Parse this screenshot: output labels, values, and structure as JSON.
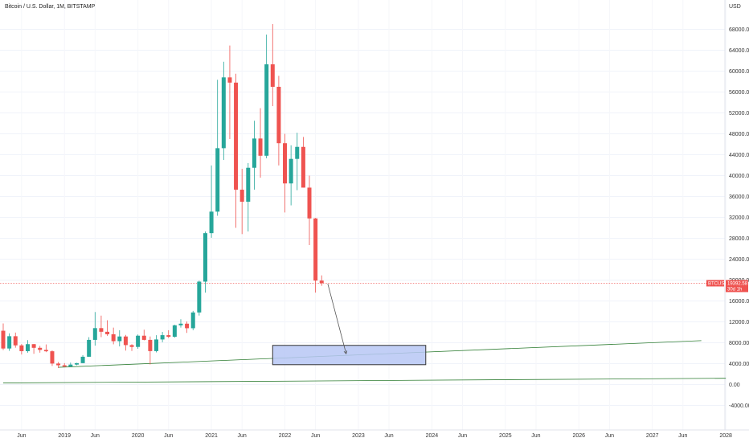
{
  "header": {
    "title": "Bitcoin / U.S. Dollar, 1M, BITSTAMP"
  },
  "price_axis": {
    "unit": "USD"
  },
  "price_badge": {
    "symbol": "BTCUSD",
    "price": "19392.58",
    "countdown": "30d 1h"
  },
  "colors": {
    "up": "#26a69a",
    "down": "#ef5350",
    "trendline": "#2e7d32",
    "box_fill": "#b7c7f5",
    "box_border": "#333333",
    "price_line": "#ef5350",
    "axis_text": "#333333"
  },
  "chart_data": {
    "type": "candlestick",
    "title": "Bitcoin / U.S. Dollar, 1M, BITSTAMP",
    "ylabel": "USD",
    "ylim": [
      -5000,
      70000
    ],
    "y_ticks": [
      -4000,
      0,
      4000,
      8000,
      12000,
      16000,
      20000,
      24000,
      28000,
      32000,
      36000,
      40000,
      44000,
      48000,
      52000,
      56000,
      60000,
      64000,
      68000
    ],
    "y_tick_labels": [
      "-4000.00",
      "0.00",
      "4000.00",
      "8000.00",
      "12000.00",
      "16000.00",
      "20000.00",
      "24000.00",
      "28000.00",
      "32000.00",
      "36000.00",
      "40000.00",
      "44000.00",
      "48000.00",
      "52000.00",
      "56000.00",
      "60000.00",
      "64000.00",
      "68000.00"
    ],
    "x_start": "2018-03",
    "x_ticks": [
      {
        "date": "2018-06",
        "label": "Jun"
      },
      {
        "date": "2019-01",
        "label": "2019"
      },
      {
        "date": "2019-06",
        "label": "Jun"
      },
      {
        "date": "2020-01",
        "label": "2020"
      },
      {
        "date": "2020-06",
        "label": "Jun"
      },
      {
        "date": "2021-01",
        "label": "2021"
      },
      {
        "date": "2021-06",
        "label": "Jun"
      },
      {
        "date": "2022-01",
        "label": "2022"
      },
      {
        "date": "2022-06",
        "label": "Jun"
      },
      {
        "date": "2023-01",
        "label": "2023"
      },
      {
        "date": "2023-06",
        "label": "Jun"
      },
      {
        "date": "2024-01",
        "label": "2024"
      },
      {
        "date": "2024-06",
        "label": "Jun"
      },
      {
        "date": "2025-01",
        "label": "2025"
      },
      {
        "date": "2025-06",
        "label": "Jun"
      },
      {
        "date": "2026-01",
        "label": "2026"
      },
      {
        "date": "2026-06",
        "label": "Jun"
      },
      {
        "date": "2027-01",
        "label": "2027"
      },
      {
        "date": "2027-06",
        "label": "Jun"
      },
      {
        "date": "2028-01",
        "label": "2028"
      }
    ],
    "candles": [
      {
        "date": "2018-03",
        "o": 10300,
        "h": 11700,
        "l": 6600,
        "c": 6900
      },
      {
        "date": "2018-04",
        "o": 6900,
        "h": 9800,
        "l": 6450,
        "c": 9250
      },
      {
        "date": "2018-05",
        "o": 9250,
        "h": 9950,
        "l": 7050,
        "c": 7500
      },
      {
        "date": "2018-06",
        "o": 7500,
        "h": 7750,
        "l": 5750,
        "c": 6390
      },
      {
        "date": "2018-07",
        "o": 6390,
        "h": 8500,
        "l": 6100,
        "c": 7730
      },
      {
        "date": "2018-08",
        "o": 7730,
        "h": 7760,
        "l": 5880,
        "c": 7030
      },
      {
        "date": "2018-09",
        "o": 7030,
        "h": 7400,
        "l": 6100,
        "c": 6630
      },
      {
        "date": "2018-10",
        "o": 6630,
        "h": 7680,
        "l": 6200,
        "c": 6370
      },
      {
        "date": "2018-11",
        "o": 6370,
        "h": 6560,
        "l": 3550,
        "c": 4020
      },
      {
        "date": "2018-12",
        "o": 4020,
        "h": 4300,
        "l": 3150,
        "c": 3690
      },
      {
        "date": "2019-01",
        "o": 3690,
        "h": 4100,
        "l": 3350,
        "c": 3440
      },
      {
        "date": "2019-02",
        "o": 3440,
        "h": 4200,
        "l": 3400,
        "c": 3820
      },
      {
        "date": "2019-03",
        "o": 3820,
        "h": 4150,
        "l": 3700,
        "c": 4100
      },
      {
        "date": "2019-04",
        "o": 4100,
        "h": 5640,
        "l": 4070,
        "c": 5320
      },
      {
        "date": "2019-05",
        "o": 5320,
        "h": 9070,
        "l": 5290,
        "c": 8550
      },
      {
        "date": "2019-06",
        "o": 8550,
        "h": 13880,
        "l": 7450,
        "c": 10800
      },
      {
        "date": "2019-07",
        "o": 10800,
        "h": 13200,
        "l": 9070,
        "c": 10100
      },
      {
        "date": "2019-08",
        "o": 10100,
        "h": 12300,
        "l": 9320,
        "c": 9630
      },
      {
        "date": "2019-09",
        "o": 9630,
        "h": 10900,
        "l": 7700,
        "c": 8300
      },
      {
        "date": "2019-10",
        "o": 8300,
        "h": 10400,
        "l": 7300,
        "c": 9200
      },
      {
        "date": "2019-11",
        "o": 9200,
        "h": 9500,
        "l": 6500,
        "c": 7550
      },
      {
        "date": "2019-12",
        "o": 7550,
        "h": 7740,
        "l": 6430,
        "c": 7200
      },
      {
        "date": "2020-01",
        "o": 7200,
        "h": 9580,
        "l": 6850,
        "c": 9350
      },
      {
        "date": "2020-02",
        "o": 9350,
        "h": 10500,
        "l": 8450,
        "c": 8550
      },
      {
        "date": "2020-03",
        "o": 8550,
        "h": 9200,
        "l": 3850,
        "c": 6400
      },
      {
        "date": "2020-04",
        "o": 6400,
        "h": 9450,
        "l": 6150,
        "c": 8630
      },
      {
        "date": "2020-05",
        "o": 8630,
        "h": 10070,
        "l": 8100,
        "c": 9450
      },
      {
        "date": "2020-06",
        "o": 9450,
        "h": 10400,
        "l": 8900,
        "c": 9140
      },
      {
        "date": "2020-07",
        "o": 9140,
        "h": 11450,
        "l": 8980,
        "c": 11340
      },
      {
        "date": "2020-08",
        "o": 11340,
        "h": 12500,
        "l": 10900,
        "c": 11650
      },
      {
        "date": "2020-09",
        "o": 11650,
        "h": 12080,
        "l": 9880,
        "c": 10780
      },
      {
        "date": "2020-10",
        "o": 10780,
        "h": 14100,
        "l": 10400,
        "c": 13800
      },
      {
        "date": "2020-11",
        "o": 13800,
        "h": 19900,
        "l": 13200,
        "c": 19700
      },
      {
        "date": "2020-12",
        "o": 19700,
        "h": 29300,
        "l": 17600,
        "c": 28980
      },
      {
        "date": "2021-01",
        "o": 28980,
        "h": 41950,
        "l": 28100,
        "c": 33100
      },
      {
        "date": "2021-02",
        "o": 33100,
        "h": 58350,
        "l": 32300,
        "c": 45250
      },
      {
        "date": "2021-03",
        "o": 45250,
        "h": 61800,
        "l": 43000,
        "c": 58800
      },
      {
        "date": "2021-04",
        "o": 58800,
        "h": 64900,
        "l": 47000,
        "c": 57800
      },
      {
        "date": "2021-05",
        "o": 57800,
        "h": 59500,
        "l": 30000,
        "c": 37300
      },
      {
        "date": "2021-06",
        "o": 37300,
        "h": 41300,
        "l": 28800,
        "c": 35000
      },
      {
        "date": "2021-07",
        "o": 35000,
        "h": 42400,
        "l": 29300,
        "c": 41500
      },
      {
        "date": "2021-08",
        "o": 41500,
        "h": 50500,
        "l": 37300,
        "c": 47100
      },
      {
        "date": "2021-09",
        "o": 47100,
        "h": 52900,
        "l": 39600,
        "c": 43800
      },
      {
        "date": "2021-10",
        "o": 43800,
        "h": 67000,
        "l": 43300,
        "c": 61300
      },
      {
        "date": "2021-11",
        "o": 61300,
        "h": 69000,
        "l": 53300,
        "c": 57000
      },
      {
        "date": "2021-12",
        "o": 57000,
        "h": 59100,
        "l": 41950,
        "c": 46200
      },
      {
        "date": "2022-01",
        "o": 46200,
        "h": 48000,
        "l": 32950,
        "c": 38500
      },
      {
        "date": "2022-02",
        "o": 38500,
        "h": 45800,
        "l": 34300,
        "c": 43200
      },
      {
        "date": "2022-03",
        "o": 43200,
        "h": 48200,
        "l": 37200,
        "c": 45500
      },
      {
        "date": "2022-04",
        "o": 45500,
        "h": 47400,
        "l": 37700,
        "c": 37700
      },
      {
        "date": "2022-05",
        "o": 37700,
        "h": 40000,
        "l": 26700,
        "c": 31800
      },
      {
        "date": "2022-06",
        "o": 31800,
        "h": 31900,
        "l": 17600,
        "c": 19900
      },
      {
        "date": "2022-07",
        "o": 19900,
        "h": 20900,
        "l": 18900,
        "c": 19392.58
      }
    ],
    "trendlines": [
      {
        "start": {
          "date": "2018-12",
          "price": 3300
        },
        "end": {
          "date": "2027-09",
          "price": 8400
        }
      },
      {
        "start": {
          "date": "2018-03",
          "price": 300
        },
        "end": {
          "date": "2028-01",
          "price": 1200
        }
      }
    ],
    "target_box": {
      "start": "2021-11",
      "end": "2023-12",
      "top": 7500,
      "bottom": 3800
    },
    "projection_arrow": {
      "start": {
        "date": "2022-08",
        "price": 19300
      },
      "end": {
        "date": "2022-11",
        "price": 5900
      }
    },
    "last_price": 19392.58
  }
}
